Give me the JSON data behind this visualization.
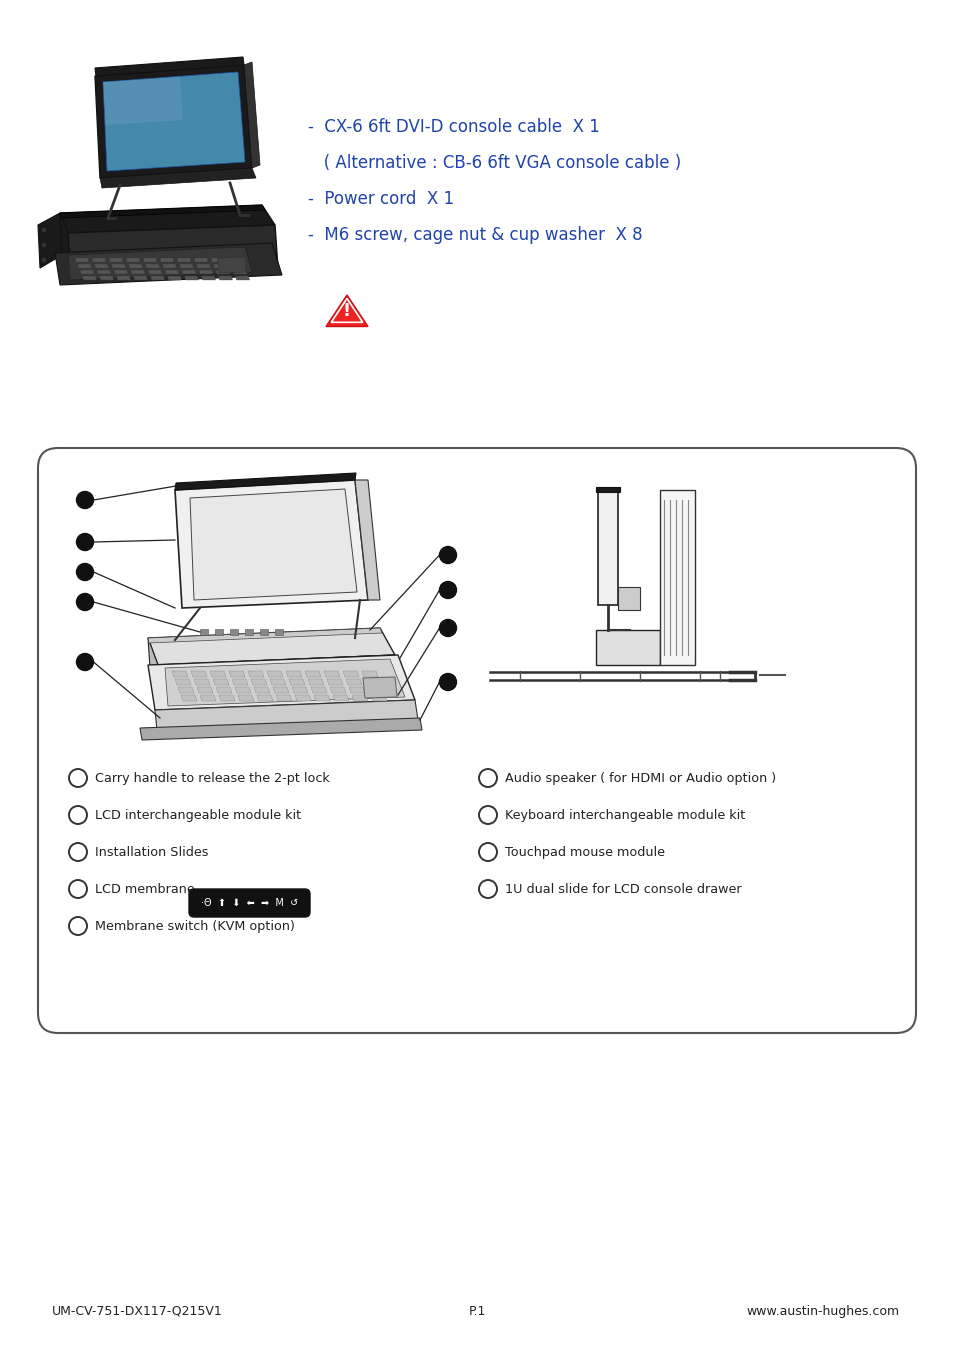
{
  "bg_color": "#ffffff",
  "blue": "#2244aa",
  "dark": "#222222",
  "bullet_items_main": [
    "-  CX-6 6ft DVI-D console cable  X 1",
    "   ( Alternative : CB-6 6ft VGA console cable )",
    "-  Power cord  X 1",
    "-  M6 screw, cage nut & cup washer  X 8"
  ],
  "left_legend": [
    "Carry handle to release the 2-pt lock",
    "LCD interchangeable module kit",
    "Installation Slides",
    "LCD membrane",
    "Membrane switch (KVM option)"
  ],
  "right_legend": [
    "Audio speaker ( for HDMI or Audio option )",
    "Keyboard interchangeable module kit",
    "Touchpad mouse module",
    "1U dual slide for LCD console drawer"
  ],
  "footer_left": "UM-CV-751-DX117-Q215V1",
  "footer_center": "P.1",
  "footer_right": "www.austin-hughes.com"
}
